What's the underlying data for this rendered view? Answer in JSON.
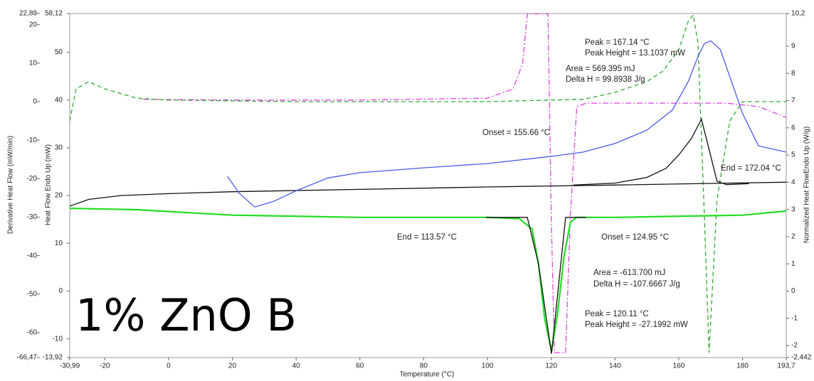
{
  "chart_data": {
    "type": "line",
    "label": "1% ZnO B",
    "xlabel": "Temperature (°C)",
    "ylabel": "Heat Flow Endo Up (mW)",
    "y2label": "Normalized Heat FlowEndo Up (W/g)",
    "y3label": "Derivative Heat Flow (mW/min)",
    "xlim": [
      -30.99,
      193.7
    ],
    "xticks": [
      {
        "value": -30.99,
        "label": "-30,99"
      },
      -20,
      0,
      20,
      40,
      60,
      80,
      100,
      120,
      140,
      160,
      180,
      {
        "value": 193.7,
        "label": "193,7"
      }
    ],
    "ylim": [
      -13.92,
      58.12
    ],
    "yticks": [
      {
        "value": -13.92,
        "label": "-13,92"
      },
      -10,
      0,
      10,
      20,
      30,
      40,
      50,
      {
        "value": 58.12,
        "label": "58,12"
      }
    ],
    "y2lim": [
      -2.442,
      10.2
    ],
    "y2ticks": [
      {
        "value": -2.442,
        "label": "-2,442"
      },
      -2,
      -1,
      0,
      1,
      2,
      3,
      4,
      5,
      6,
      7,
      8,
      9,
      {
        "value": 10.2,
        "label": "10,2"
      }
    ],
    "y3lim": [
      -66.47,
      22.89
    ],
    "y3ticks": [
      {
        "value": -66.47,
        "label": "-66,47"
      },
      -60,
      -50,
      -40,
      -30,
      -20,
      -10,
      0,
      10,
      20,
      {
        "value": 22.89,
        "label": "22,89"
      }
    ],
    "annotations": [
      "Peak = 167.14 °C",
      "Peak Height = 13.1037 mW",
      "Area = 569.395 mJ",
      "Delta H = 99.8938 J/g",
      "Onset = 155.66 °C",
      "End = 172.04 °C",
      "End = 113.57 °C",
      "Onset = 124.95 °C",
      "Area = -613.700 mJ",
      "Delta H = -107.6667 J/g",
      "Peak = 120.11 °C",
      "Peak Height = -27.1992 mW"
    ],
    "series": [
      {
        "color": "#dd44dd",
        "style": "dash-dot",
        "axis": "y3",
        "x": [
          -8,
          20,
          60,
          100,
          108,
          111,
          112.5,
          119,
          120,
          121,
          124.5,
          126,
          128,
          131,
          150,
          175,
          185,
          193.7
        ],
        "values": [
          0.6,
          0.4,
          0.4,
          0.9,
          3.3,
          9.8,
          22.8,
          22.8,
          -29.6,
          -65.2,
          -65.2,
          -29.6,
          -1.3,
          -0.4,
          -0.4,
          -0.4,
          -1.3,
          -4.1
        ]
      },
      {
        "color": "#33aa33",
        "style": "dashed",
        "axis": "y3",
        "x": [
          -30.99,
          -29,
          -25,
          -20,
          -10,
          0,
          40,
          100,
          130,
          140,
          150,
          155,
          160,
          163,
          164.5,
          166,
          168,
          169.5,
          172,
          176,
          180,
          193.7
        ],
        "values": [
          -5,
          3.3,
          5.2,
          3.3,
          0.9,
          0.4,
          0,
          0,
          0.6,
          2.4,
          5.2,
          7.9,
          13.5,
          20.9,
          22.5,
          15.4,
          -29.1,
          -65.2,
          -25.4,
          -5,
          0,
          0
        ]
      },
      {
        "color": "#111111",
        "style": "solid",
        "x": [
          -30.99,
          -25,
          -15,
          0,
          20,
          60,
          100,
          140,
          193.7
        ],
        "values": [
          17.8,
          19.2,
          20.0,
          20.4,
          20.8,
          21.3,
          21.8,
          22.2,
          22.8
        ]
      },
      {
        "color": "#111111",
        "style": "solid",
        "x": [
          127,
          140,
          150,
          156,
          160,
          164,
          167.1,
          169,
          172,
          175,
          182
        ],
        "values": [
          22.2,
          22.6,
          23.8,
          25.7,
          28.5,
          32.0,
          36.0,
          31,
          23,
          22.3,
          22.5
        ]
      },
      {
        "color": "#4a5ae8",
        "style": "solid",
        "x": [
          18.5,
          22,
          27,
          33,
          40,
          50,
          60,
          80,
          100,
          120,
          130,
          140,
          150,
          158,
          163,
          166,
          168,
          170,
          173,
          176,
          180,
          185,
          193.7
        ],
        "values": [
          24.0,
          20.6,
          17.6,
          18.8,
          21.0,
          23.7,
          24.8,
          25.8,
          26.7,
          28.2,
          29.1,
          30.9,
          33.7,
          37.9,
          43.9,
          49.1,
          51.8,
          52.4,
          50.6,
          44.9,
          37.2,
          30.4,
          29.1
        ]
      },
      {
        "color": "#22dd22",
        "style": "solid",
        "axis": "y2",
        "x": [
          -30.99,
          -10,
          20,
          60,
          100,
          110,
          114,
          116,
          118,
          120.1,
          122,
          124,
          126,
          128,
          140,
          180,
          193.7
        ],
        "values": [
          3.04,
          2.99,
          2.79,
          2.71,
          2.71,
          2.66,
          2.28,
          1.0,
          -1.05,
          -2.2,
          -0.79,
          1.25,
          2.53,
          2.71,
          2.71,
          2.79,
          2.94
        ]
      },
      {
        "color": "#111111",
        "style": "solid",
        "axis": "y2",
        "x": [
          99.5,
          112.5,
          116,
          120.1,
          124.5,
          127,
          131
        ],
        "values": [
          2.71,
          2.71,
          1.0,
          -2.3,
          2.71,
          2.71,
          2.71
        ]
      }
    ]
  }
}
